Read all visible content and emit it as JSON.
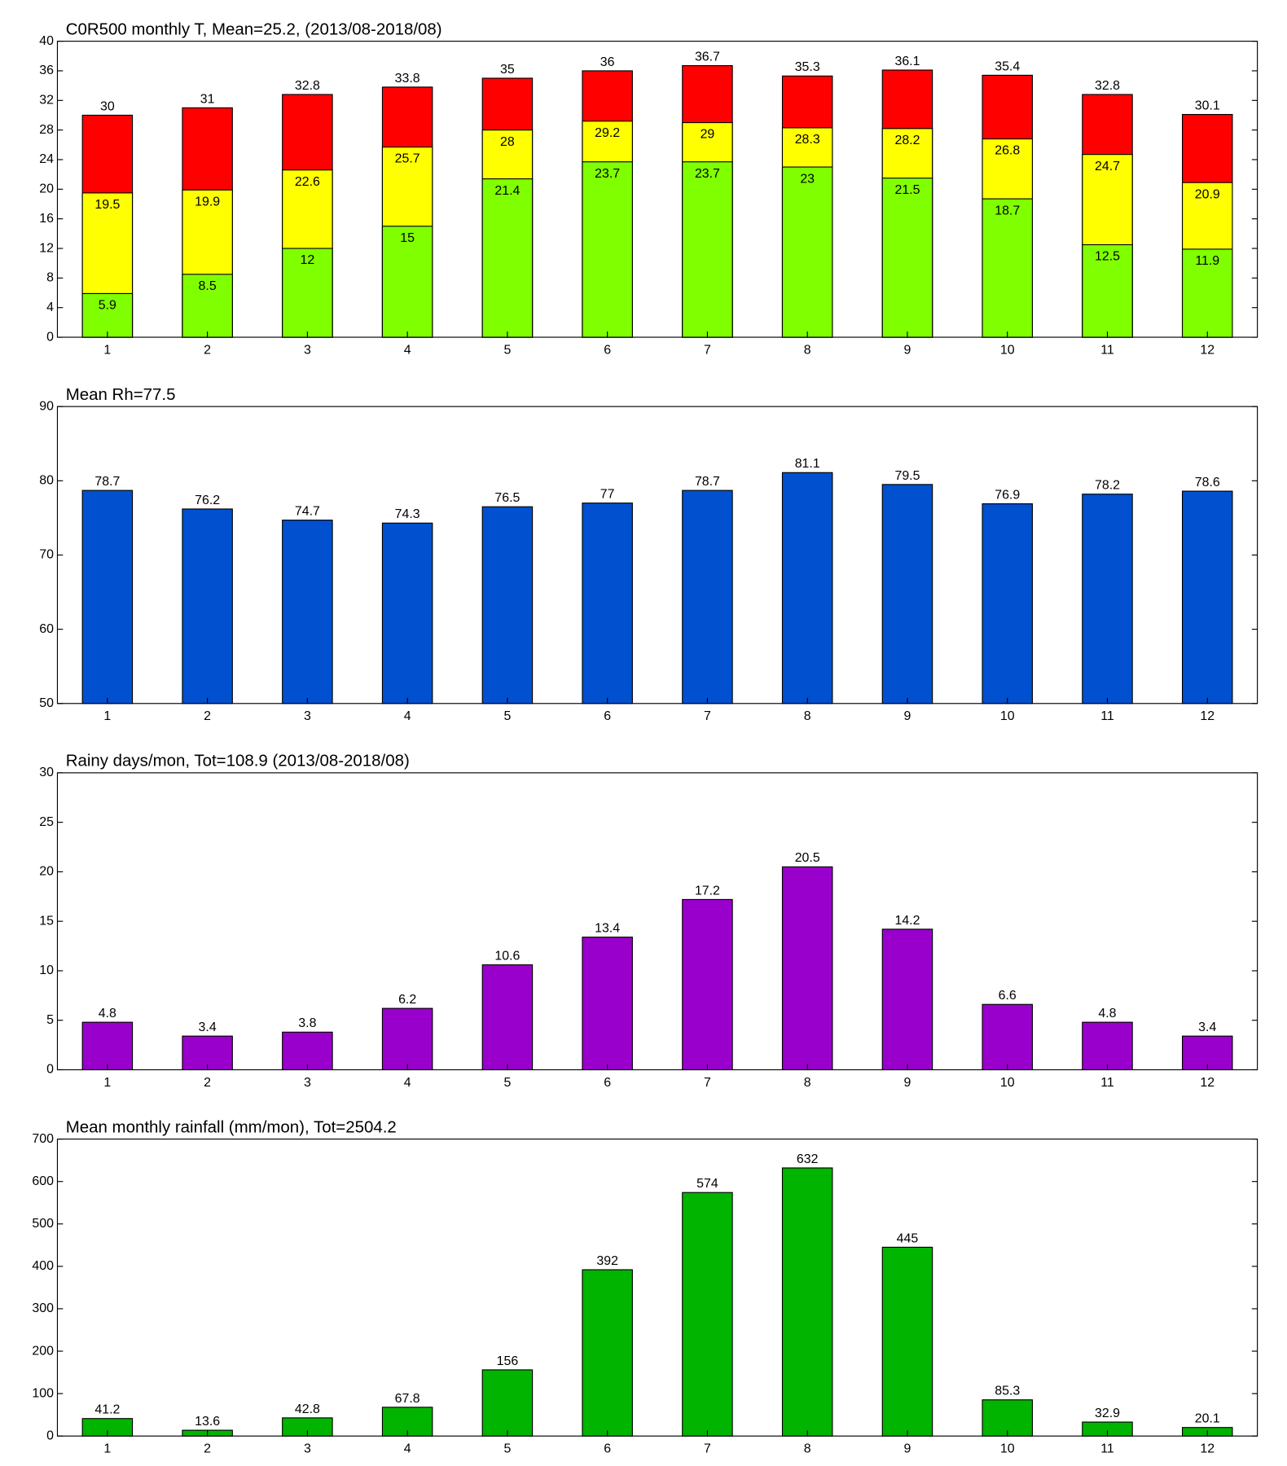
{
  "chart_data": [
    {
      "type": "bar",
      "title": "C0R500 monthly T, Mean=25.2, (2013/08-2018/08)",
      "categories": [
        1,
        2,
        3,
        4,
        5,
        6,
        7,
        8,
        9,
        10,
        11,
        12
      ],
      "series": [
        {
          "color": "#ff0000",
          "label_position": "above",
          "values": [
            30,
            31,
            32.8,
            33.8,
            35,
            36,
            36.7,
            35.3,
            36.1,
            35.4,
            32.8,
            30.1
          ]
        },
        {
          "color": "#ffff00",
          "label_position": "inside",
          "values": [
            19.5,
            19.9,
            22.6,
            25.7,
            28,
            29.2,
            29,
            28.3,
            28.2,
            26.8,
            24.7,
            20.9
          ]
        },
        {
          "color": "#80ff00",
          "label_position": "inside",
          "values": [
            5.9,
            8.5,
            12,
            15,
            21.4,
            23.7,
            23.7,
            23,
            21.5,
            18.7,
            12.5,
            11.9
          ]
        }
      ],
      "ylim": [
        0,
        40
      ],
      "yticks": [
        0,
        4,
        8,
        12,
        16,
        20,
        24,
        28,
        32,
        36,
        40
      ],
      "grid": false
    },
    {
      "type": "bar",
      "title": "Mean Rh=77.5",
      "categories": [
        1,
        2,
        3,
        4,
        5,
        6,
        7,
        8,
        9,
        10,
        11,
        12
      ],
      "series": [
        {
          "color": "#0050d0",
          "label_position": "above",
          "values": [
            78.7,
            76.2,
            74.7,
            74.3,
            76.5,
            77,
            78.7,
            81.1,
            79.5,
            76.9,
            78.2,
            78.6
          ]
        }
      ],
      "ylim": [
        50,
        90
      ],
      "yticks": [
        50,
        60,
        70,
        80,
        90
      ],
      "grid": false
    },
    {
      "type": "bar",
      "title": "Rainy days/mon, Tot=108.9 (2013/08-2018/08)",
      "categories": [
        1,
        2,
        3,
        4,
        5,
        6,
        7,
        8,
        9,
        10,
        11,
        12
      ],
      "series": [
        {
          "color": "#9900cc",
          "label_position": "above",
          "values": [
            4.8,
            3.4,
            3.8,
            6.2,
            10.6,
            13.4,
            17.2,
            20.5,
            14.2,
            6.6,
            4.8,
            3.4
          ]
        }
      ],
      "ylim": [
        0,
        30
      ],
      "yticks": [
        0,
        5,
        10,
        15,
        20,
        25,
        30
      ],
      "grid": false
    },
    {
      "type": "bar",
      "title": "Mean monthly rainfall (mm/mon), Tot=2504.2",
      "categories": [
        1,
        2,
        3,
        4,
        5,
        6,
        7,
        8,
        9,
        10,
        11,
        12
      ],
      "series": [
        {
          "color": "#00b400",
          "label_position": "above",
          "values": [
            41.2,
            13.6,
            42.8,
            67.8,
            156,
            392,
            574,
            632,
            445,
            85.3,
            32.9,
            20.1
          ]
        }
      ],
      "ylim": [
        0,
        700
      ],
      "yticks": [
        0,
        100,
        200,
        300,
        400,
        500,
        600,
        700
      ],
      "grid": false
    }
  ]
}
